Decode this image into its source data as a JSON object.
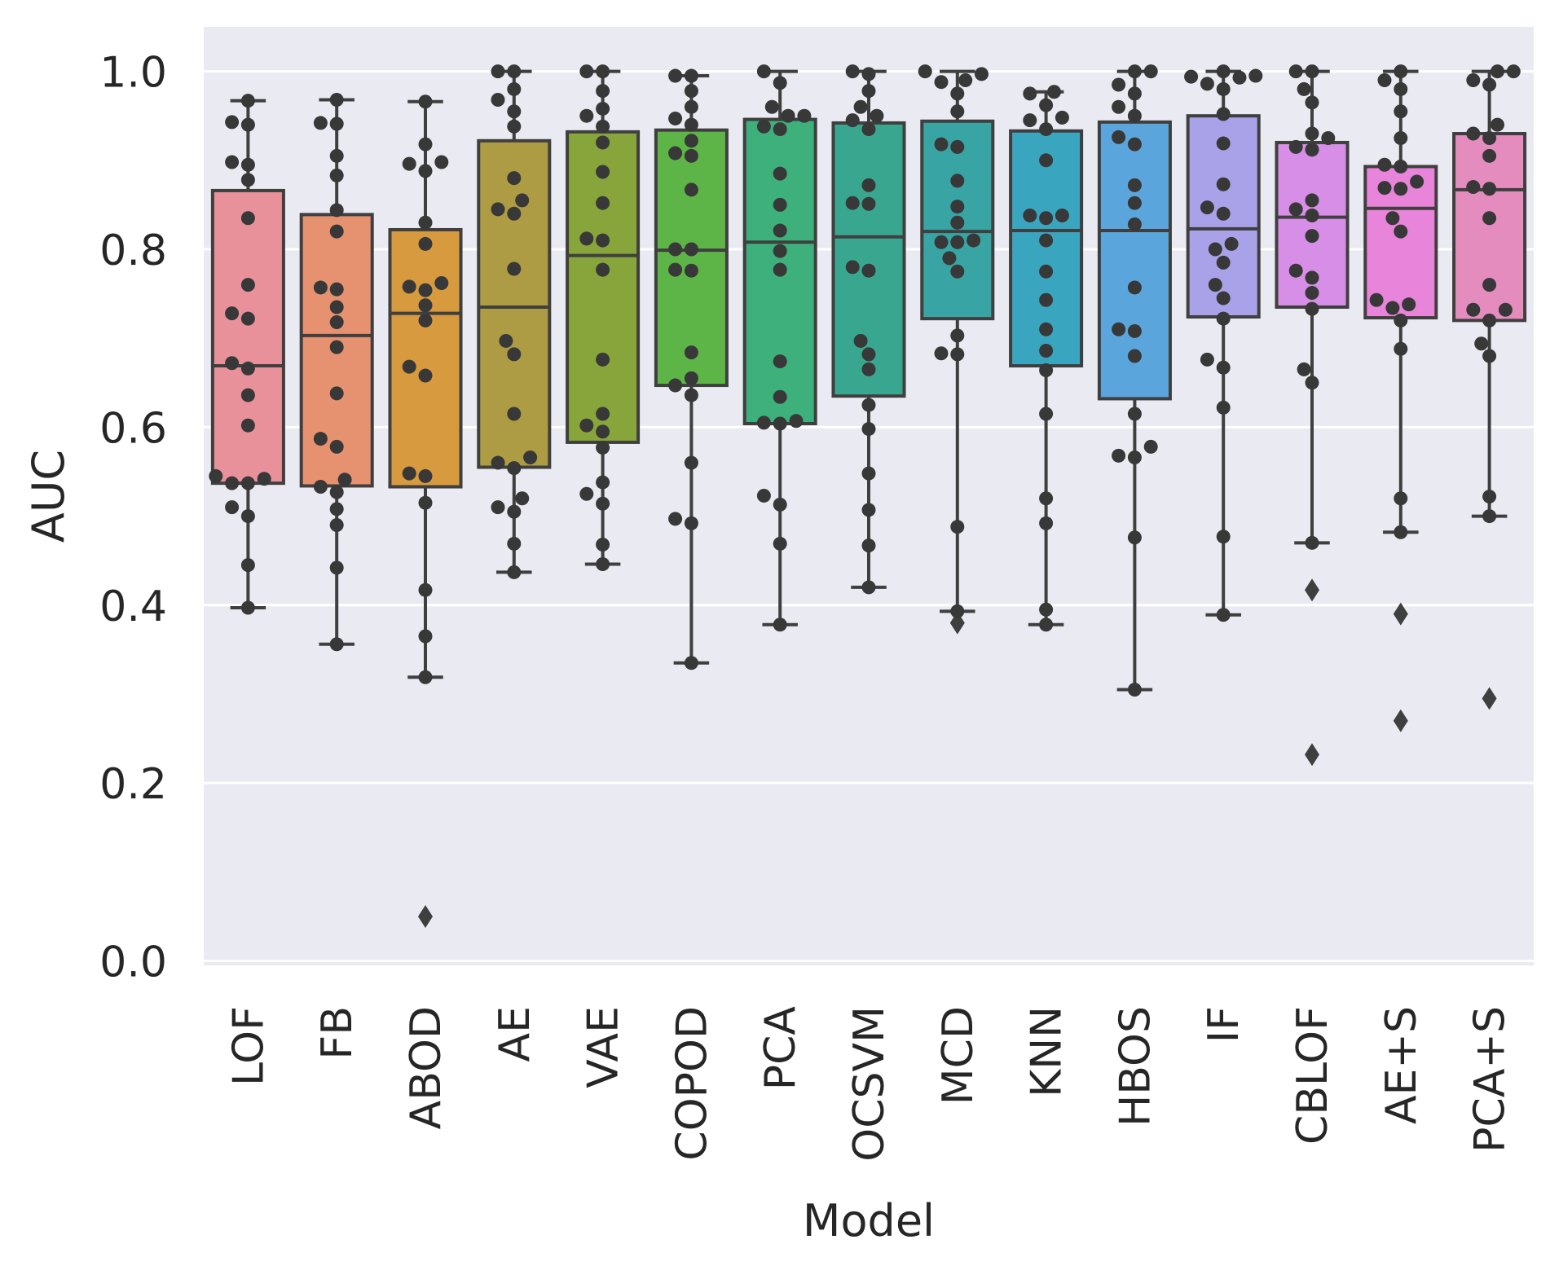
{
  "chart_data": {
    "type": "boxplot",
    "xlabel": "Model",
    "ylabel": "AUC",
    "ylim": [
      -0.005,
      1.05
    ],
    "yticks": [
      "0.0",
      "0.2",
      "0.4",
      "0.6",
      "0.8",
      "1.0"
    ],
    "grid": true,
    "categories": [
      {
        "name": "LOF",
        "color": "#e8919a",
        "q1": 0.537,
        "median": 0.669,
        "q3": 0.866,
        "whisker_low": 0.397,
        "whisker_high": 0.967,
        "outliers": [],
        "points": [
          0.967,
          0.943,
          0.94,
          0.898,
          0.895,
          0.878,
          0.835,
          0.76,
          0.728,
          0.722,
          0.672,
          0.666,
          0.636,
          0.602,
          0.545,
          0.542,
          0.537,
          0.537,
          0.51,
          0.5,
          0.445,
          0.397
        ]
      },
      {
        "name": "FB",
        "color": "#e69270",
        "q1": 0.534,
        "median": 0.703,
        "q3": 0.839,
        "whisker_low": 0.356,
        "whisker_high": 0.968,
        "outliers": [],
        "points": [
          0.968,
          0.942,
          0.941,
          0.905,
          0.883,
          0.844,
          0.82,
          0.757,
          0.755,
          0.735,
          0.718,
          0.69,
          0.638,
          0.587,
          0.578,
          0.541,
          0.533,
          0.527,
          0.508,
          0.49,
          0.442,
          0.356
        ]
      },
      {
        "name": "ABOD",
        "color": "#d79a3f",
        "q1": 0.533,
        "median": 0.728,
        "q3": 0.822,
        "whisker_low": 0.319,
        "whisker_high": 0.966,
        "outliers": [
          0.05
        ],
        "points": [
          0.966,
          0.918,
          0.898,
          0.896,
          0.888,
          0.83,
          0.806,
          0.762,
          0.758,
          0.754,
          0.737,
          0.72,
          0.668,
          0.658,
          0.548,
          0.545,
          0.515,
          0.417,
          0.365,
          0.319
        ]
      },
      {
        "name": "AE",
        "color": "#ad9c43",
        "q1": 0.555,
        "median": 0.735,
        "q3": 0.922,
        "whisker_low": 0.437,
        "whisker_high": 1.0,
        "outliers": [],
        "points": [
          1.0,
          1.0,
          0.98,
          0.968,
          0.955,
          0.938,
          0.88,
          0.855,
          0.845,
          0.84,
          0.778,
          0.697,
          0.682,
          0.615,
          0.566,
          0.56,
          0.554,
          0.52,
          0.51,
          0.505,
          0.469,
          0.437
        ]
      },
      {
        "name": "VAE",
        "color": "#88a53b",
        "q1": 0.583,
        "median": 0.793,
        "q3": 0.932,
        "whisker_low": 0.446,
        "whisker_high": 1.0,
        "outliers": [],
        "points": [
          1.0,
          1.0,
          0.978,
          0.958,
          0.95,
          0.938,
          0.92,
          0.887,
          0.852,
          0.812,
          0.81,
          0.777,
          0.676,
          0.615,
          0.602,
          0.595,
          0.577,
          0.538,
          0.525,
          0.514,
          0.468,
          0.446
        ]
      },
      {
        "name": "COPOD",
        "color": "#5db547",
        "q1": 0.647,
        "median": 0.799,
        "q3": 0.934,
        "whisker_low": 0.335,
        "whisker_high": 0.995,
        "outliers": [],
        "points": [
          0.995,
          0.995,
          0.978,
          0.96,
          0.947,
          0.94,
          0.922,
          0.908,
          0.905,
          0.867,
          0.8,
          0.8,
          0.777,
          0.776,
          0.684,
          0.655,
          0.647,
          0.636,
          0.56,
          0.497,
          0.492,
          0.335
        ]
      },
      {
        "name": "PCA",
        "color": "#3db07c",
        "q1": 0.604,
        "median": 0.808,
        "q3": 0.946,
        "whisker_low": 0.378,
        "whisker_high": 1.0,
        "outliers": [],
        "points": [
          1.0,
          0.987,
          0.96,
          0.95,
          0.95,
          0.938,
          0.935,
          0.885,
          0.85,
          0.821,
          0.798,
          0.777,
          0.674,
          0.634,
          0.607,
          0.605,
          0.604,
          0.523,
          0.513,
          0.469,
          0.378
        ]
      },
      {
        "name": "OCSVM",
        "color": "#39a78f",
        "q1": 0.635,
        "median": 0.814,
        "q3": 0.942,
        "whisker_low": 0.42,
        "whisker_high": 1.0,
        "outliers": [],
        "points": [
          1.0,
          0.997,
          0.978,
          0.96,
          0.95,
          0.945,
          0.935,
          0.872,
          0.852,
          0.851,
          0.78,
          0.776,
          0.697,
          0.682,
          0.665,
          0.625,
          0.598,
          0.548,
          0.507,
          0.467,
          0.42
        ]
      },
      {
        "name": "MCD",
        "color": "#38a4a4",
        "q1": 0.722,
        "median": 0.82,
        "q3": 0.944,
        "whisker_low": 0.393,
        "whisker_high": 1.0,
        "outliers": [
          0.38
        ],
        "points": [
          1.0,
          0.997,
          0.99,
          0.988,
          0.975,
          0.955,
          0.918,
          0.915,
          0.877,
          0.848,
          0.83,
          0.81,
          0.808,
          0.808,
          0.79,
          0.775,
          0.703,
          0.683,
          0.682,
          0.488,
          0.393
        ]
      },
      {
        "name": "KNN",
        "color": "#3aa5bf",
        "q1": 0.669,
        "median": 0.821,
        "q3": 0.933,
        "whisker_low": 0.378,
        "whisker_high": 0.977,
        "outliers": [],
        "points": [
          0.977,
          0.975,
          0.962,
          0.948,
          0.945,
          0.935,
          0.9,
          0.838,
          0.838,
          0.835,
          0.81,
          0.775,
          0.743,
          0.71,
          0.686,
          0.664,
          0.615,
          0.52,
          0.492,
          0.395,
          0.378
        ]
      },
      {
        "name": "HBOS",
        "color": "#5aa6dc",
        "q1": 0.632,
        "median": 0.821,
        "q3": 0.943,
        "whisker_low": 0.305,
        "whisker_high": 1.0,
        "outliers": [],
        "points": [
          1.0,
          1.0,
          0.985,
          0.975,
          0.96,
          0.95,
          0.926,
          0.918,
          0.872,
          0.852,
          0.828,
          0.757,
          0.71,
          0.708,
          0.68,
          0.615,
          0.578,
          0.568,
          0.566,
          0.476,
          0.305
        ]
      },
      {
        "name": "IF",
        "color": "#a9a2e8",
        "q1": 0.724,
        "median": 0.823,
        "q3": 0.95,
        "whisker_low": 0.389,
        "whisker_high": 1.0,
        "outliers": [],
        "points": [
          1.0,
          0.995,
          0.994,
          0.993,
          0.986,
          0.98,
          0.952,
          0.919,
          0.873,
          0.847,
          0.84,
          0.806,
          0.8,
          0.785,
          0.76,
          0.745,
          0.722,
          0.676,
          0.667,
          0.622,
          0.477,
          0.389
        ]
      },
      {
        "name": "CBLOF",
        "color": "#d68ee6",
        "q1": 0.735,
        "median": 0.836,
        "q3": 0.92,
        "whisker_low": 0.47,
        "whisker_high": 1.0,
        "outliers": [
          0.417,
          0.232
        ],
        "points": [
          1.0,
          1.0,
          0.98,
          0.965,
          0.93,
          0.925,
          0.915,
          0.912,
          0.855,
          0.845,
          0.838,
          0.815,
          0.776,
          0.768,
          0.751,
          0.733,
          0.665,
          0.65,
          0.47
        ]
      },
      {
        "name": "AE+S",
        "color": "#e884d9",
        "q1": 0.723,
        "median": 0.846,
        "q3": 0.893,
        "whisker_low": 0.482,
        "whisker_high": 1.0,
        "outliers": [
          0.39,
          0.27
        ],
        "points": [
          1.0,
          0.99,
          0.98,
          0.955,
          0.925,
          0.895,
          0.893,
          0.876,
          0.869,
          0.868,
          0.835,
          0.82,
          0.743,
          0.738,
          0.734,
          0.72,
          0.688,
          0.52,
          0.482
        ]
      },
      {
        "name": "PCA+S",
        "color": "#e58cbf",
        "q1": 0.72,
        "median": 0.867,
        "q3": 0.93,
        "whisker_low": 0.5,
        "whisker_high": 1.0,
        "outliers": [
          0.295
        ],
        "points": [
          1.0,
          1.0,
          0.99,
          0.985,
          0.94,
          0.93,
          0.925,
          0.905,
          0.87,
          0.868,
          0.835,
          0.76,
          0.732,
          0.732,
          0.72,
          0.694,
          0.68,
          0.522,
          0.5
        ]
      }
    ]
  }
}
